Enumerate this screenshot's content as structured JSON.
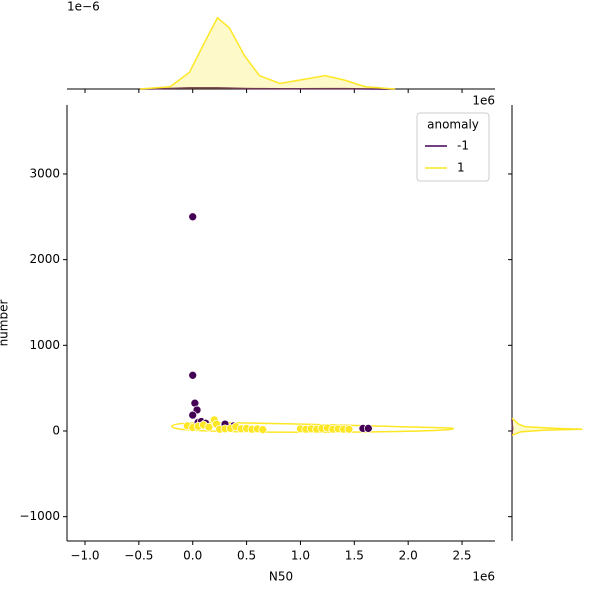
{
  "chart_data": {
    "type": "scatter",
    "x_label": "N50",
    "y_label": "number",
    "x_offset_label": "1e6",
    "top_offset_label": "1e−6",
    "right_offset_label": "1e6",
    "legend_title": "anomaly",
    "legend": "upper right",
    "xlim": [
      -1167000,
      2806000
    ],
    "ylim": [
      -1284,
      3805
    ],
    "xticks": [
      {
        "value": -1000000,
        "label": "−1.0"
      },
      {
        "value": -500000,
        "label": "−0.5"
      },
      {
        "value": 0,
        "label": "0.0"
      },
      {
        "value": 500000,
        "label": "0.5"
      },
      {
        "value": 1000000,
        "label": "1.0"
      },
      {
        "value": 1500000,
        "label": "1.5"
      },
      {
        "value": 2000000,
        "label": "2.0"
      },
      {
        "value": 2500000,
        "label": "2.5"
      }
    ],
    "yticks": [
      {
        "value": -1000,
        "label": "−1000"
      },
      0,
      1000,
      2000,
      3000
    ],
    "series": [
      {
        "name": "-1",
        "color": "#440154",
        "x": [
          0,
          0,
          20000,
          40000,
          0,
          50000,
          80000,
          120000,
          300000,
          380000,
          1580000,
          1630000
        ],
        "y": [
          2500,
          650,
          325,
          245,
          185,
          100,
          110,
          90,
          80,
          60,
          30,
          30
        ]
      },
      {
        "name": "1",
        "color": "#fde725",
        "x": [
          -50000,
          0,
          50000,
          100000,
          150000,
          200000,
          220000,
          250000,
          300000,
          350000,
          400000,
          450000,
          500000,
          550000,
          600000,
          650000,
          1000000,
          1050000,
          1100000,
          1150000,
          1200000,
          1250000,
          1300000,
          1350000,
          1400000,
          1450000
        ],
        "y": [
          60,
          40,
          55,
          70,
          45,
          130,
          80,
          20,
          25,
          30,
          50,
          25,
          30,
          20,
          25,
          15,
          25,
          20,
          25,
          20,
          30,
          35,
          20,
          25,
          20,
          20
        ]
      }
    ],
    "top_marginal": {
      "ylim": [
        0,
        8e-07
      ],
      "x": [
        -490000,
        -210000,
        -30000,
        110000,
        230000,
        340000,
        480000,
        620000,
        810000,
        990000,
        1230000,
        1410000,
        1600000,
        1880000
      ],
      "series": [
        {
          "color": "#440154",
          "values": [
            0,
            5e-09,
            1e-08,
            1e-08,
            1e-08,
            8e-09,
            5e-09,
            3e-09,
            2e-09,
            2e-09,
            3e-09,
            3e-09,
            1e-09,
            0
          ]
        },
        {
          "color": "#fde725",
          "values": [
            0,
            2e-08,
            1.5e-07,
            4.2e-07,
            6.4e-07,
            5.5e-07,
            3e-07,
            1.2e-07,
            5e-08,
            8e-08,
            1.2e-07,
            8e-08,
            2e-08,
            0
          ]
        }
      ]
    },
    "right_marginal": {
      "xlim": [
        0,
        0.008
      ],
      "y": [
        150,
        80,
        50,
        30,
        20,
        10,
        -10,
        -50
      ],
      "series": [
        {
          "color": "#440154",
          "values": [
            0,
            2e-05,
            4e-05,
            6e-05,
            6e-05,
            4e-05,
            2e-05,
            0
          ]
        },
        {
          "color": "#fde725",
          "values": [
            0,
            0.0006,
            0.0012,
            0.004,
            0.0064,
            0.003,
            0.0008,
            0
          ]
        }
      ]
    }
  }
}
